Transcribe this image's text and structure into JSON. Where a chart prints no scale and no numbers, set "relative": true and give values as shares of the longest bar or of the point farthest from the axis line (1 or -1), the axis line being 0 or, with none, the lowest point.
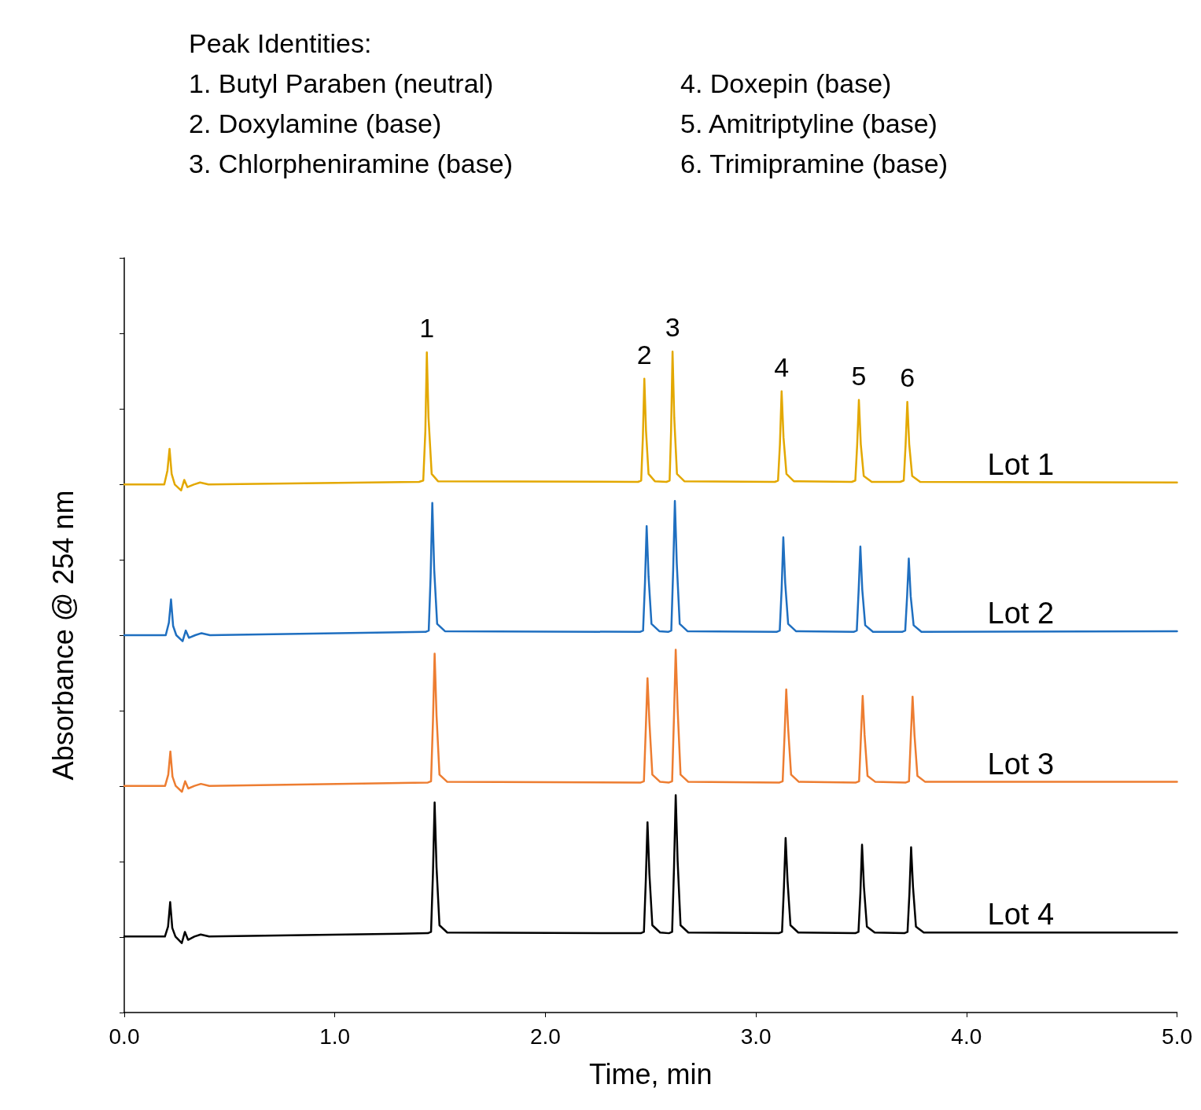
{
  "chart_data": {
    "type": "line",
    "relative": true,
    "xlabel": "Time, min",
    "ylabel": "Absorbance @ 254 nm",
    "xlim": [
      0,
      5
    ],
    "xticks": [
      {
        "value": 0,
        "label": "0.0"
      },
      {
        "value": 1,
        "label": "1.0"
      },
      {
        "value": 2,
        "label": "2.0"
      },
      {
        "value": 3,
        "label": "3.0"
      },
      {
        "value": 4,
        "label": "4.0"
      },
      {
        "value": 5,
        "label": "5.0"
      }
    ],
    "grid": false,
    "legend": false,
    "marker": "none",
    "line_style": "solid",
    "annotations": [
      "Peak Identities:",
      "1. Butyl Paraben (neutral)",
      "2. Doxylamine (base)",
      "3. Chlorpheniramine (base)",
      "4. Doxepin (base)",
      "5. Amitriptyline (base)",
      "6. Trimipramine (base)",
      {
        "text": "1",
        "x": 1.437,
        "y": 0.999
      },
      {
        "text": "2",
        "x": 2.47,
        "y": 0.959
      },
      {
        "text": "3",
        "x": 2.604,
        "y": 1.0
      },
      {
        "text": "4",
        "x": 3.122,
        "y": 0.94
      },
      {
        "text": "5",
        "x": 3.489,
        "y": 0.927
      },
      {
        "text": "6",
        "x": 3.719,
        "y": 0.924
      }
    ],
    "series": [
      {
        "name": "Lot 1",
        "color": "#e3a800",
        "x": [
          0,
          0.19,
          0.205,
          0.215,
          0.225,
          0.24,
          0.27,
          0.285,
          0.3,
          0.33,
          0.36,
          0.4,
          1.4,
          1.42,
          1.43,
          1.437,
          1.445,
          1.46,
          1.49,
          2.44,
          2.455,
          2.463,
          2.47,
          2.478,
          2.49,
          2.52,
          2.575,
          2.59,
          2.597,
          2.604,
          2.612,
          2.625,
          2.66,
          3.09,
          3.105,
          3.114,
          3.122,
          3.131,
          3.145,
          3.18,
          3.455,
          3.472,
          3.481,
          3.489,
          3.498,
          3.512,
          3.55,
          3.685,
          3.702,
          3.711,
          3.719,
          3.728,
          3.742,
          3.78,
          5.0
        ],
        "values": [
          0.799,
          0.799,
          0.82,
          0.853,
          0.815,
          0.799,
          0.79,
          0.806,
          0.795,
          0.799,
          0.802,
          0.799,
          0.803,
          0.805,
          0.88,
          0.999,
          0.9,
          0.815,
          0.804,
          0.803,
          0.805,
          0.87,
          0.959,
          0.88,
          0.815,
          0.804,
          0.803,
          0.805,
          0.88,
          1.0,
          0.9,
          0.815,
          0.804,
          0.803,
          0.805,
          0.86,
          0.94,
          0.87,
          0.815,
          0.804,
          0.803,
          0.805,
          0.86,
          0.927,
          0.86,
          0.812,
          0.803,
          0.803,
          0.805,
          0.86,
          0.924,
          0.86,
          0.812,
          0.803,
          0.802
        ]
      },
      {
        "name": "Lot 2",
        "color": "#1f6fc0",
        "x": [
          0,
          0.197,
          0.212,
          0.222,
          0.232,
          0.247,
          0.277,
          0.292,
          0.307,
          0.337,
          0.367,
          0.407,
          1.431,
          1.446,
          1.455,
          1.463,
          1.472,
          1.486,
          1.523,
          2.449,
          2.464,
          2.473,
          2.481,
          2.49,
          2.504,
          2.541,
          2.583,
          2.598,
          2.607,
          2.615,
          2.624,
          2.638,
          2.675,
          3.098,
          3.113,
          3.122,
          3.13,
          3.139,
          3.153,
          3.19,
          3.464,
          3.479,
          3.488,
          3.496,
          3.505,
          3.519,
          3.556,
          3.694,
          3.709,
          3.718,
          3.726,
          3.735,
          3.749,
          3.786,
          5.0
        ],
        "values": [
          0.571,
          0.571,
          0.59,
          0.625,
          0.585,
          0.571,
          0.562,
          0.578,
          0.567,
          0.571,
          0.574,
          0.571,
          0.576,
          0.578,
          0.66,
          0.771,
          0.67,
          0.588,
          0.577,
          0.576,
          0.578,
          0.65,
          0.736,
          0.66,
          0.588,
          0.577,
          0.576,
          0.578,
          0.67,
          0.774,
          0.68,
          0.588,
          0.577,
          0.576,
          0.578,
          0.64,
          0.719,
          0.65,
          0.588,
          0.577,
          0.576,
          0.578,
          0.64,
          0.705,
          0.64,
          0.586,
          0.576,
          0.576,
          0.578,
          0.63,
          0.687,
          0.63,
          0.586,
          0.576,
          0.577
        ]
      },
      {
        "name": "Lot 3",
        "color": "#ed7d31",
        "x": [
          0,
          0.194,
          0.209,
          0.219,
          0.229,
          0.244,
          0.274,
          0.289,
          0.304,
          0.334,
          0.364,
          0.404,
          1.442,
          1.457,
          1.466,
          1.474,
          1.483,
          1.497,
          1.534,
          2.453,
          2.468,
          2.477,
          2.485,
          2.494,
          2.508,
          2.545,
          2.587,
          2.602,
          2.611,
          2.619,
          2.628,
          2.642,
          2.679,
          3.112,
          3.127,
          3.136,
          3.144,
          3.153,
          3.167,
          3.204,
          3.475,
          3.49,
          3.499,
          3.507,
          3.516,
          3.53,
          3.567,
          3.712,
          3.727,
          3.736,
          3.744,
          3.753,
          3.767,
          3.804,
          5.0
        ],
        "values": [
          0.343,
          0.343,
          0.36,
          0.395,
          0.357,
          0.343,
          0.334,
          0.35,
          0.339,
          0.343,
          0.346,
          0.343,
          0.348,
          0.35,
          0.44,
          0.543,
          0.45,
          0.36,
          0.349,
          0.348,
          0.35,
          0.43,
          0.506,
          0.44,
          0.36,
          0.349,
          0.348,
          0.35,
          0.45,
          0.549,
          0.46,
          0.36,
          0.349,
          0.348,
          0.35,
          0.42,
          0.489,
          0.43,
          0.36,
          0.349,
          0.348,
          0.35,
          0.42,
          0.479,
          0.42,
          0.358,
          0.349,
          0.348,
          0.35,
          0.42,
          0.478,
          0.42,
          0.358,
          0.349,
          0.349
        ]
      },
      {
        "name": "Lot 4",
        "color": "#000000",
        "x": [
          0,
          0.193,
          0.208,
          0.218,
          0.228,
          0.243,
          0.273,
          0.288,
          0.303,
          0.333,
          0.363,
          0.403,
          1.442,
          1.457,
          1.466,
          1.474,
          1.483,
          1.497,
          1.534,
          2.453,
          2.468,
          2.477,
          2.485,
          2.494,
          2.508,
          2.545,
          2.587,
          2.602,
          2.611,
          2.619,
          2.628,
          2.642,
          2.679,
          3.109,
          3.124,
          3.133,
          3.141,
          3.15,
          3.164,
          3.201,
          3.472,
          3.487,
          3.496,
          3.504,
          3.513,
          3.527,
          3.564,
          3.705,
          3.72,
          3.729,
          3.737,
          3.746,
          3.76,
          3.797,
          5.0
        ],
        "values": [
          0.115,
          0.115,
          0.13,
          0.167,
          0.128,
          0.115,
          0.105,
          0.122,
          0.11,
          0.115,
          0.118,
          0.115,
          0.12,
          0.122,
          0.21,
          0.318,
          0.22,
          0.132,
          0.121,
          0.12,
          0.122,
          0.2,
          0.288,
          0.21,
          0.132,
          0.121,
          0.12,
          0.122,
          0.22,
          0.329,
          0.23,
          0.132,
          0.121,
          0.12,
          0.122,
          0.19,
          0.264,
          0.2,
          0.132,
          0.121,
          0.12,
          0.122,
          0.18,
          0.254,
          0.19,
          0.13,
          0.121,
          0.12,
          0.122,
          0.18,
          0.25,
          0.19,
          0.13,
          0.121,
          0.121
        ]
      }
    ]
  }
}
